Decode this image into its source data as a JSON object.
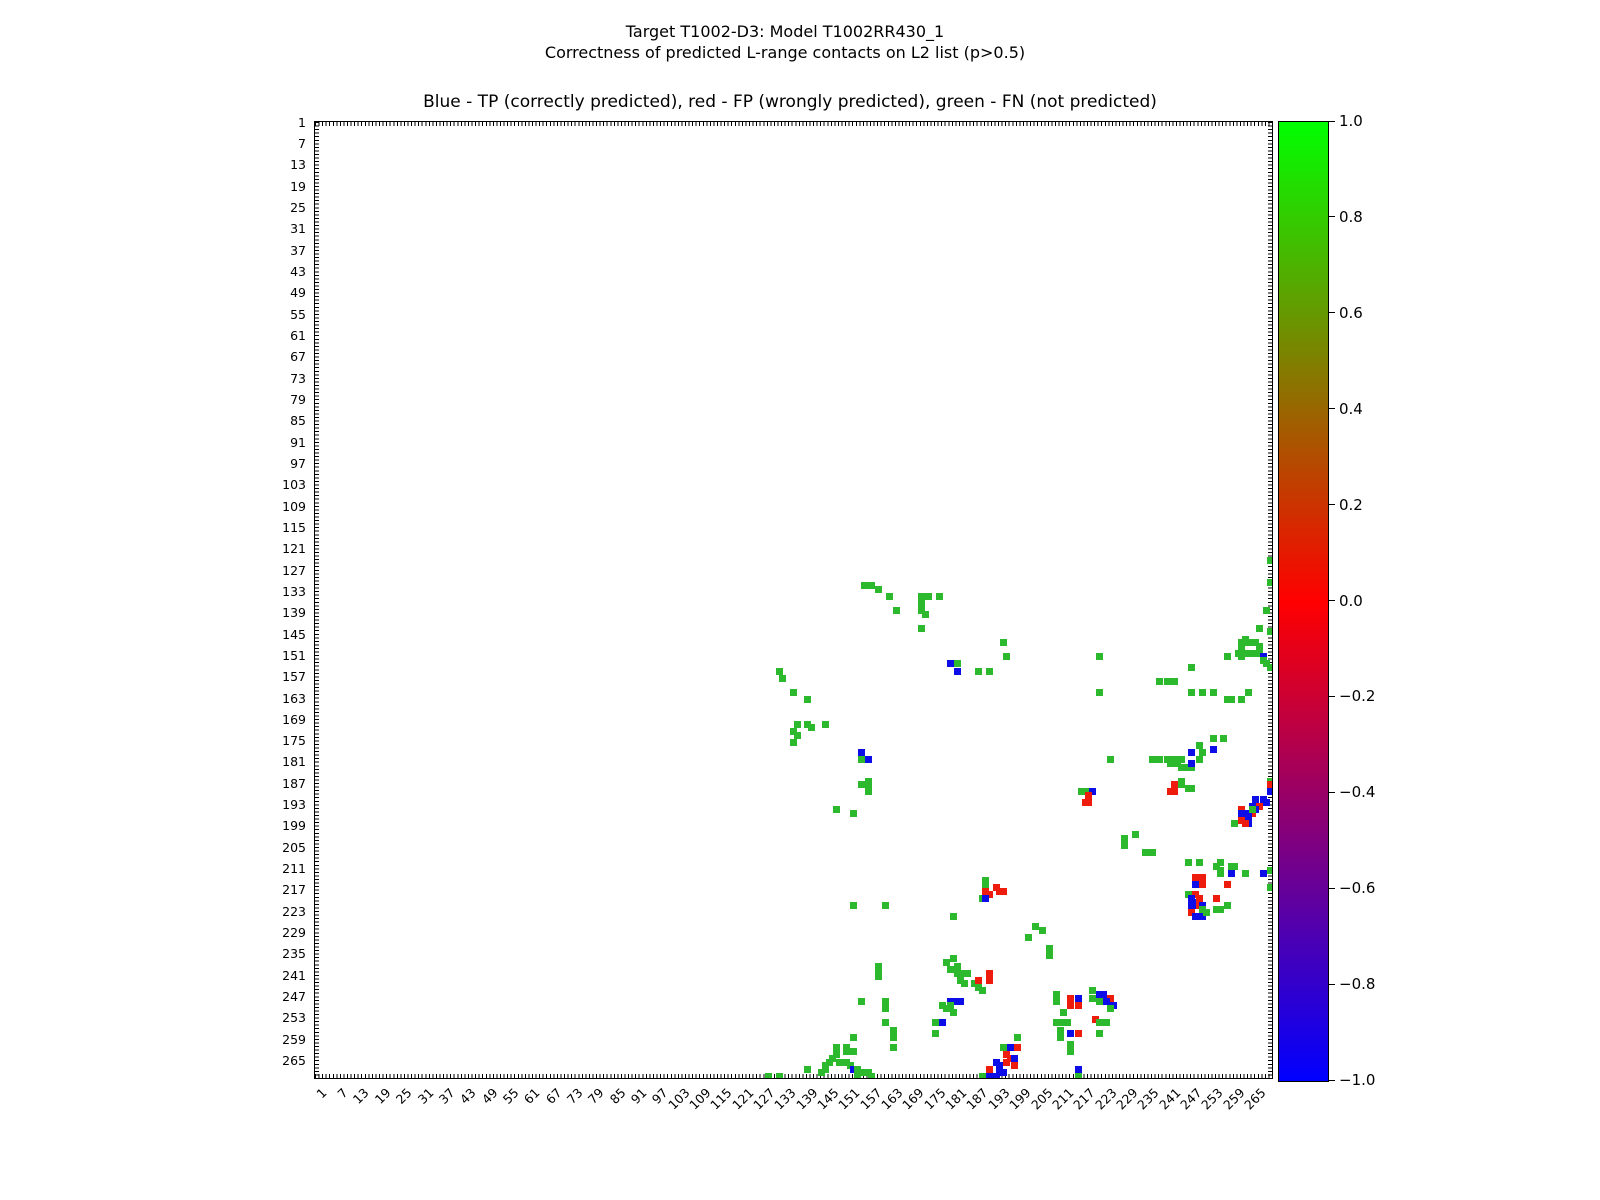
{
  "figure": {
    "suptitle_line1": "Target T1002-D3: Model T1002RR430_1",
    "suptitle_line2": "Correctness of predicted L-range contacts on L2 list (p>0.5)",
    "axes_title": "Blue - TP (correctly predicted), red - FP (wrongly predicted), green - FN (not predicted)"
  },
  "chart_data": {
    "type": "scatter",
    "title": "Blue - TP (correctly predicted), red - FP (wrongly predicted), green - FN (not predicted)",
    "xlabel": "",
    "ylabel": "",
    "x_range": [
      0.5,
      269.5
    ],
    "y_range": [
      0.5,
      269.5
    ],
    "y_axis_inverted": true,
    "grid": false,
    "axis_ticks": [
      1,
      7,
      13,
      19,
      25,
      31,
      37,
      43,
      49,
      55,
      61,
      67,
      73,
      79,
      85,
      91,
      97,
      103,
      109,
      115,
      121,
      127,
      133,
      139,
      145,
      151,
      157,
      163,
      169,
      175,
      181,
      187,
      193,
      199,
      205,
      211,
      217,
      223,
      229,
      235,
      241,
      247,
      253,
      259,
      265
    ],
    "legend": {
      "TP": "blue (correctly predicted)",
      "FP": "red (wrongly predicted)",
      "FN": "green (not predicted)"
    },
    "marker_colors": {
      "g": "#2db92d",
      "r": "#ee1c0c",
      "b": "#0d0de8"
    },
    "colorbar": {
      "min": -1.0,
      "max": 1.0,
      "tick_labels": [
        "1.0",
        "0.8",
        "0.6",
        "0.4",
        "0.2",
        "0.0",
        "−0.2",
        "−0.4",
        "−0.6",
        "−0.8",
        "−1.0"
      ],
      "gradient": [
        "#00ff00",
        "#ff0000",
        "#0000ff"
      ]
    },
    "points": [
      [
        155,
        131,
        "g"
      ],
      [
        157,
        131,
        "g"
      ],
      [
        159,
        132,
        "g"
      ],
      [
        162,
        134,
        "g"
      ],
      [
        171,
        134,
        "g"
      ],
      [
        173,
        134,
        "g"
      ],
      [
        176,
        134,
        "g"
      ],
      [
        171,
        136,
        "g"
      ],
      [
        164,
        138,
        "g"
      ],
      [
        171,
        138,
        "g"
      ],
      [
        172,
        139,
        "g"
      ],
      [
        171,
        143,
        "g"
      ],
      [
        179,
        153,
        "b"
      ],
      [
        181,
        153,
        "g"
      ],
      [
        181,
        155,
        "b"
      ],
      [
        187,
        155,
        "g"
      ],
      [
        190,
        155,
        "g"
      ],
      [
        131,
        155,
        "g"
      ],
      [
        132,
        157,
        "g"
      ],
      [
        135,
        161,
        "g"
      ],
      [
        139,
        163,
        "g"
      ],
      [
        136,
        170,
        "g"
      ],
      [
        139,
        170,
        "g"
      ],
      [
        144,
        170,
        "g"
      ],
      [
        140,
        171,
        "g"
      ],
      [
        135,
        172,
        "g"
      ],
      [
        136,
        173,
        "g"
      ],
      [
        135,
        175,
        "g"
      ],
      [
        154,
        178,
        "b"
      ],
      [
        154,
        180,
        "g"
      ],
      [
        156,
        180,
        "b"
      ],
      [
        156,
        186,
        "g"
      ],
      [
        154,
        187,
        "g"
      ],
      [
        156,
        188,
        "g"
      ],
      [
        156,
        189,
        "g"
      ],
      [
        147,
        194,
        "g"
      ],
      [
        152,
        195,
        "g"
      ],
      [
        194,
        147,
        "g"
      ],
      [
        195,
        151,
        "g"
      ],
      [
        221,
        151,
        "g"
      ],
      [
        221,
        161,
        "g"
      ],
      [
        224,
        180,
        "g"
      ],
      [
        247,
        154,
        "g"
      ],
      [
        238,
        158,
        "g"
      ],
      [
        240,
        158,
        "g"
      ],
      [
        242,
        158,
        "g"
      ],
      [
        247,
        161,
        "g"
      ],
      [
        250,
        161,
        "g"
      ],
      [
        253,
        161,
        "g"
      ],
      [
        263,
        161,
        "g"
      ],
      [
        257,
        163,
        "g"
      ],
      [
        258,
        163,
        "g"
      ],
      [
        261,
        163,
        "g"
      ],
      [
        269,
        124,
        "g"
      ],
      [
        269,
        130,
        "g"
      ],
      [
        268,
        138,
        "g"
      ],
      [
        266,
        143,
        "g"
      ],
      [
        269,
        144,
        "g"
      ],
      [
        262,
        146,
        "g"
      ],
      [
        261,
        147,
        "g"
      ],
      [
        263,
        147,
        "g"
      ],
      [
        265,
        147,
        "g"
      ],
      [
        261,
        148,
        "g"
      ],
      [
        266,
        148,
        "g"
      ],
      [
        260,
        150,
        "g"
      ],
      [
        262,
        150,
        "g"
      ],
      [
        264,
        150,
        "g"
      ],
      [
        266,
        150,
        "g"
      ],
      [
        261,
        151,
        "g"
      ],
      [
        267,
        151,
        "b"
      ],
      [
        267,
        152,
        "g"
      ],
      [
        268,
        153,
        "g"
      ],
      [
        269,
        154,
        "g"
      ],
      [
        257,
        151,
        "g"
      ],
      [
        253,
        174,
        "g"
      ],
      [
        256,
        174,
        "g"
      ],
      [
        253,
        177,
        "b"
      ],
      [
        236,
        180,
        "g"
      ],
      [
        238,
        180,
        "g"
      ],
      [
        240,
        180,
        "g"
      ],
      [
        241,
        180,
        "g"
      ],
      [
        243,
        180,
        "g"
      ],
      [
        244,
        180,
        "g"
      ],
      [
        241,
        181,
        "g"
      ],
      [
        243,
        181,
        "g"
      ],
      [
        244,
        182,
        "g"
      ],
      [
        245,
        182,
        "g"
      ],
      [
        247,
        182,
        "g"
      ],
      [
        249,
        176,
        "g"
      ],
      [
        250,
        178,
        "g"
      ],
      [
        249,
        180,
        "g"
      ],
      [
        247,
        178,
        "b"
      ],
      [
        247,
        181,
        "b"
      ],
      [
        244,
        186,
        "g"
      ],
      [
        242,
        187,
        "r"
      ],
      [
        244,
        187,
        "g"
      ],
      [
        246,
        188,
        "g"
      ],
      [
        247,
        188,
        "g"
      ],
      [
        241,
        189,
        "r"
      ],
      [
        242,
        189,
        "r"
      ],
      [
        216,
        189,
        "g"
      ],
      [
        217,
        189,
        "g"
      ],
      [
        219,
        189,
        "b"
      ],
      [
        218,
        190,
        "r"
      ],
      [
        217,
        192,
        "r"
      ],
      [
        218,
        192,
        "r"
      ],
      [
        269,
        186,
        "g"
      ],
      [
        269,
        187,
        "r"
      ],
      [
        269,
        189,
        "b"
      ],
      [
        267,
        191,
        "b"
      ],
      [
        265,
        191,
        "b"
      ],
      [
        268,
        192,
        "b"
      ],
      [
        266,
        193,
        "r"
      ],
      [
        264,
        193,
        "b"
      ],
      [
        265,
        194,
        "b"
      ],
      [
        264,
        195,
        "r"
      ],
      [
        261,
        194,
        "r"
      ],
      [
        262,
        195,
        "b"
      ],
      [
        263,
        196,
        "b"
      ],
      [
        261,
        195,
        "b"
      ],
      [
        263,
        197,
        "b"
      ],
      [
        261,
        197,
        "r"
      ],
      [
        263,
        198,
        "b"
      ],
      [
        262,
        198,
        "r"
      ],
      [
        259,
        198,
        "g"
      ],
      [
        264,
        194,
        "g"
      ],
      [
        231,
        201,
        "g"
      ],
      [
        228,
        202,
        "g"
      ],
      [
        228,
        204,
        "g"
      ],
      [
        234,
        206,
        "g"
      ],
      [
        236,
        206,
        "g"
      ],
      [
        246,
        209,
        "g"
      ],
      [
        249,
        209,
        "g"
      ],
      [
        254,
        210,
        "g"
      ],
      [
        255,
        209,
        "g"
      ],
      [
        255,
        211,
        "g"
      ],
      [
        255,
        212,
        "g"
      ],
      [
        258,
        210,
        "g"
      ],
      [
        259,
        210,
        "g"
      ],
      [
        262,
        212,
        "g"
      ],
      [
        269,
        211,
        "g"
      ],
      [
        267,
        212,
        "b"
      ],
      [
        269,
        216,
        "g"
      ],
      [
        248,
        213,
        "r"
      ],
      [
        250,
        213,
        "r"
      ],
      [
        248,
        215,
        "b"
      ],
      [
        250,
        215,
        "r"
      ],
      [
        258,
        212,
        "b"
      ],
      [
        257,
        215,
        "r"
      ],
      [
        246,
        218,
        "g"
      ],
      [
        248,
        218,
        "r"
      ],
      [
        247,
        219,
        "b"
      ],
      [
        248,
        220,
        "b"
      ],
      [
        247,
        221,
        "b"
      ],
      [
        248,
        221,
        "b"
      ],
      [
        249,
        219,
        "r"
      ],
      [
        249,
        221,
        "r"
      ],
      [
        250,
        221,
        "b"
      ],
      [
        247,
        223,
        "r"
      ],
      [
        248,
        224,
        "b"
      ],
      [
        250,
        224,
        "b"
      ],
      [
        250,
        222,
        "g"
      ],
      [
        251,
        223,
        "g"
      ],
      [
        254,
        219,
        "r"
      ],
      [
        254,
        222,
        "g"
      ],
      [
        255,
        222,
        "g"
      ],
      [
        257,
        221,
        "g"
      ],
      [
        189,
        214,
        "g"
      ],
      [
        189,
        215,
        "g"
      ],
      [
        189,
        217,
        "r"
      ],
      [
        190,
        218,
        "r"
      ],
      [
        192,
        216,
        "r"
      ],
      [
        193,
        217,
        "r"
      ],
      [
        194,
        217,
        "r"
      ],
      [
        188,
        219,
        "g"
      ],
      [
        189,
        219,
        "b"
      ],
      [
        152,
        221,
        "g"
      ],
      [
        161,
        221,
        "g"
      ],
      [
        180,
        224,
        "g"
      ],
      [
        203,
        227,
        "g"
      ],
      [
        205,
        228,
        "g"
      ],
      [
        201,
        230,
        "g"
      ],
      [
        207,
        233,
        "g"
      ],
      [
        207,
        235,
        "g"
      ],
      [
        159,
        238,
        "g"
      ],
      [
        159,
        239,
        "g"
      ],
      [
        159,
        241,
        "g"
      ],
      [
        180,
        236,
        "g"
      ],
      [
        178,
        237,
        "g"
      ],
      [
        181,
        238,
        "g"
      ],
      [
        179,
        239,
        "g"
      ],
      [
        181,
        240,
        "g"
      ],
      [
        182,
        240,
        "g"
      ],
      [
        184,
        240,
        "g"
      ],
      [
        182,
        242,
        "g"
      ],
      [
        183,
        243,
        "g"
      ],
      [
        186,
        243,
        "g"
      ],
      [
        187,
        244,
        "g"
      ],
      [
        188,
        245,
        "g"
      ],
      [
        187,
        242,
        "r"
      ],
      [
        190,
        240,
        "r"
      ],
      [
        190,
        242,
        "r"
      ],
      [
        179,
        248,
        "b"
      ],
      [
        180,
        248,
        "b"
      ],
      [
        182,
        248,
        "b"
      ],
      [
        177,
        249,
        "g"
      ],
      [
        179,
        249,
        "g"
      ],
      [
        178,
        250,
        "g"
      ],
      [
        180,
        251,
        "g"
      ],
      [
        175,
        254,
        "g"
      ],
      [
        177,
        254,
        "b"
      ],
      [
        175,
        257,
        "g"
      ],
      [
        154,
        248,
        "g"
      ],
      [
        161,
        248,
        "g"
      ],
      [
        161,
        250,
        "g"
      ],
      [
        161,
        254,
        "g"
      ],
      [
        163,
        256,
        "g"
      ],
      [
        163,
        258,
        "g"
      ],
      [
        163,
        261,
        "g"
      ],
      [
        152,
        258,
        "g"
      ],
      [
        150,
        261,
        "g"
      ],
      [
        147,
        261,
        "g"
      ],
      [
        150,
        262,
        "g"
      ],
      [
        152,
        262,
        "g"
      ],
      [
        147,
        263,
        "g"
      ],
      [
        146,
        264,
        "g"
      ],
      [
        145,
        265,
        "g"
      ],
      [
        148,
        265,
        "g"
      ],
      [
        150,
        265,
        "g"
      ],
      [
        144,
        266,
        "g"
      ],
      [
        151,
        266,
        "g"
      ],
      [
        144,
        267,
        "g"
      ],
      [
        139,
        267,
        "g"
      ],
      [
        152,
        267,
        "b"
      ],
      [
        153,
        267,
        "g"
      ],
      [
        143,
        268,
        "g"
      ],
      [
        155,
        268,
        "g"
      ],
      [
        156,
        268,
        "g"
      ],
      [
        153,
        269,
        "g"
      ],
      [
        157,
        269,
        "g"
      ],
      [
        128,
        269,
        "g"
      ],
      [
        131,
        269,
        "g"
      ],
      [
        209,
        246,
        "g"
      ],
      [
        209,
        248,
        "g"
      ],
      [
        213,
        247,
        "r"
      ],
      [
        215,
        247,
        "b"
      ],
      [
        213,
        249,
        "r"
      ],
      [
        215,
        249,
        "r"
      ],
      [
        219,
        245,
        "g"
      ],
      [
        219,
        247,
        "g"
      ],
      [
        221,
        246,
        "b"
      ],
      [
        222,
        246,
        "b"
      ],
      [
        221,
        247,
        "b"
      ],
      [
        221,
        248,
        "g"
      ],
      [
        224,
        247,
        "r"
      ],
      [
        223,
        248,
        "b"
      ],
      [
        225,
        249,
        "b"
      ],
      [
        224,
        250,
        "g"
      ],
      [
        211,
        251,
        "g"
      ],
      [
        220,
        253,
        "r"
      ],
      [
        209,
        254,
        "g"
      ],
      [
        210,
        254,
        "g"
      ],
      [
        212,
        254,
        "g"
      ],
      [
        221,
        254,
        "g"
      ],
      [
        223,
        254,
        "g"
      ],
      [
        210,
        256,
        "g"
      ],
      [
        210,
        258,
        "g"
      ],
      [
        213,
        257,
        "b"
      ],
      [
        215,
        257,
        "r"
      ],
      [
        221,
        257,
        "g"
      ],
      [
        213,
        260,
        "g"
      ],
      [
        213,
        262,
        "g"
      ],
      [
        198,
        258,
        "g"
      ],
      [
        194,
        261,
        "g"
      ],
      [
        195,
        262,
        "g"
      ],
      [
        196,
        261,
        "b"
      ],
      [
        197,
        261,
        "b"
      ],
      [
        198,
        261,
        "r"
      ],
      [
        195,
        263,
        "r"
      ],
      [
        196,
        264,
        "r"
      ],
      [
        197,
        264,
        "b"
      ],
      [
        195,
        265,
        "r"
      ],
      [
        197,
        266,
        "r"
      ],
      [
        192,
        265,
        "b"
      ],
      [
        193,
        266,
        "b"
      ],
      [
        193,
        267,
        "b"
      ],
      [
        190,
        267,
        "r"
      ],
      [
        194,
        268,
        "b"
      ],
      [
        190,
        269,
        "b"
      ],
      [
        192,
        269,
        "b"
      ],
      [
        188,
        269,
        "g"
      ],
      [
        215,
        267,
        "b"
      ],
      [
        215,
        269,
        "g"
      ]
    ]
  }
}
